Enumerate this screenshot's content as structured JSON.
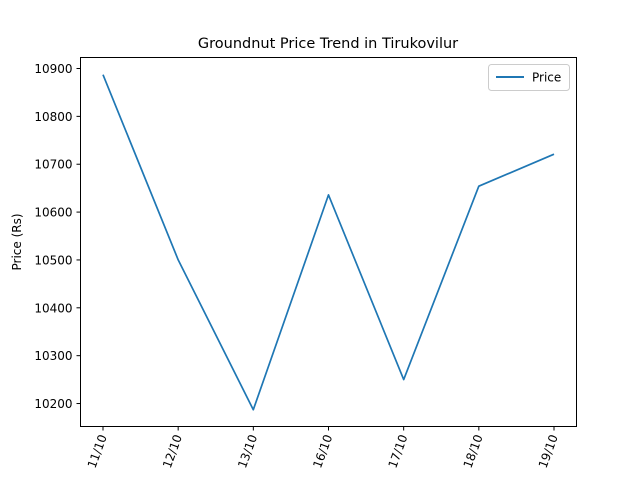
{
  "chart_data": {
    "type": "line",
    "title": "Groundnut Price Trend in Tirukovilur",
    "xlabel": "",
    "ylabel": "Price (Rs)",
    "categories": [
      "11/10",
      "12/10",
      "13/10",
      "16/10",
      "17/10",
      "18/10",
      "19/10"
    ],
    "series": [
      {
        "name": "Price",
        "color": "#1f77b4",
        "values": [
          10887,
          10500,
          10187,
          10636,
          10250,
          10654,
          10721
        ]
      }
    ],
    "yticks": [
      10200,
      10300,
      10400,
      10500,
      10600,
      10700,
      10800,
      10900
    ],
    "ylim": [
      10152,
      10923
    ],
    "legend": "top-right",
    "grid": false
  }
}
